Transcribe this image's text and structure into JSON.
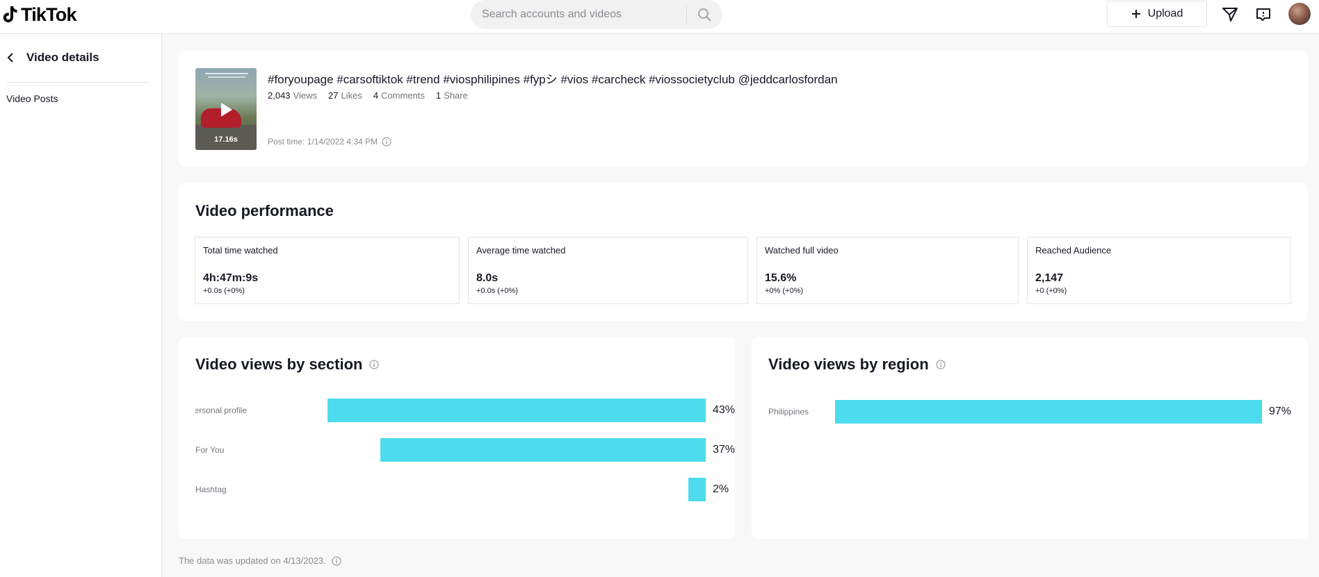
{
  "app": {
    "name": "TikTok"
  },
  "search": {
    "placeholder": "Search accounts and videos"
  },
  "header": {
    "upload_label": "Upload"
  },
  "sidebar": {
    "back_title": "Video details",
    "items": [
      {
        "label": "Video Posts"
      }
    ]
  },
  "video": {
    "title": "#foryoupage #carsoftiktok #trend #viosphilipines #fypシ #vios #carcheck #viossocietyclub @jeddcarlosfordan",
    "duration": "17.16s",
    "stats": [
      {
        "value": "2,043",
        "label": "Views"
      },
      {
        "value": "27",
        "label": "Likes"
      },
      {
        "value": "4",
        "label": "Comments"
      },
      {
        "value": "1",
        "label": "Share"
      }
    ],
    "post_time": "Post time: 1/14/2022 4:34 PM"
  },
  "performance": {
    "title": "Video performance",
    "metrics": [
      {
        "label": "Total time watched",
        "value": "4h:47m:9s",
        "change": "+0.0s (+0%)"
      },
      {
        "label": "Average time watched",
        "value": "8.0s",
        "change": "+0.0s (+0%)"
      },
      {
        "label": "Watched full video",
        "value": "15.6%",
        "change": "+0% (+0%)"
      },
      {
        "label": "Reached Audience",
        "value": "2,147",
        "change": "+0 (+0%)"
      }
    ]
  },
  "views_by_section": {
    "title": "Video views by section",
    "bar_color": "#4ddbee",
    "rows": [
      {
        "label": "Personal profile",
        "value": 43,
        "display": "43%"
      },
      {
        "label": "For You",
        "value": 37,
        "display": "37%"
      },
      {
        "label": "Hashtag",
        "value": 2,
        "display": "2%"
      }
    ]
  },
  "views_by_region": {
    "title": "Video views by region",
    "bar_color": "#4ddbee",
    "rows": [
      {
        "label": "Philippines",
        "value": 97,
        "display": "97%"
      }
    ]
  },
  "footer": {
    "updated": "The data was updated on 4/13/2023."
  }
}
